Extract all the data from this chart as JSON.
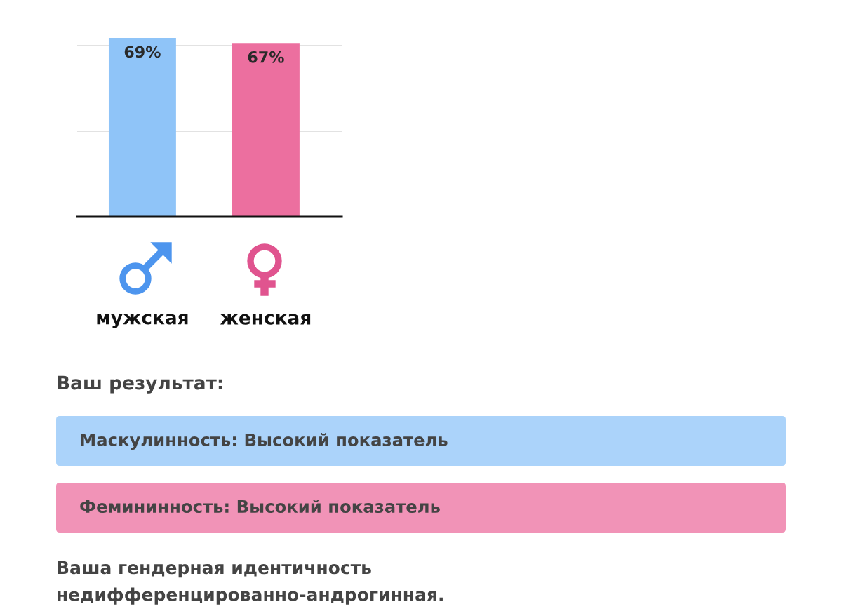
{
  "chart_data": {
    "type": "bar",
    "categories": [
      "мужская",
      "женская"
    ],
    "values": [
      69,
      67
    ],
    "colors": [
      "#8fc4f8",
      "#ec6f9f"
    ],
    "value_labels": [
      "69%",
      "67%"
    ],
    "ref_lines": [
      {
        "axis": "y",
        "value": 33,
        "color": "#d9d9d9"
      },
      {
        "axis": "y",
        "value": 66,
        "color": "#d9d9d9"
      }
    ],
    "tick_labels": "x",
    "annotations": [
      "Ваш результат:",
      "Маскулинность: Высокий показатель",
      "Фемининность: Высокий показатель",
      "Ваша гендерная идентичность недифференцированно-андрогинная."
    ]
  }
}
